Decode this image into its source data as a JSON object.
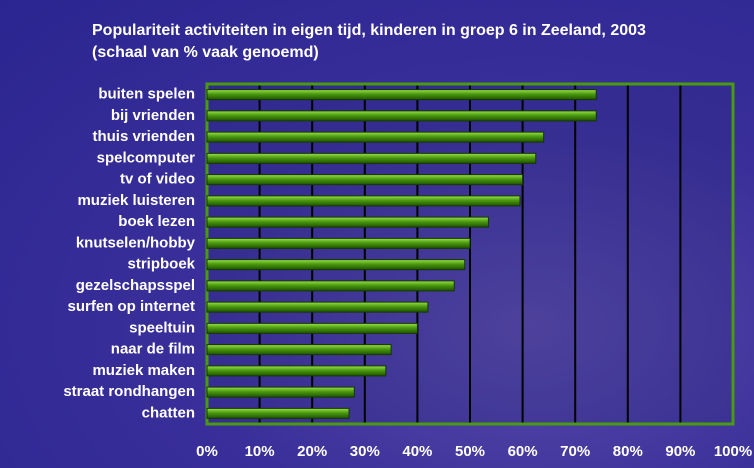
{
  "chart_data": {
    "type": "barh",
    "title": "Populariteit activiteiten in eigen tijd, kinderen in groep 6 in Zeeland, 2003 (schaal van % vaak genoemd)",
    "categories": [
      "buiten spelen",
      "bij vrienden",
      "thuis vrienden",
      "spelcomputer",
      "tv of video",
      "muziek luisteren",
      "boek lezen",
      "knutselen/hobby",
      "stripboek",
      "gezelschapsspel",
      "surfen op internet",
      "speeltuin",
      "naar de film",
      "muziek maken",
      "straat rondhangen",
      "chatten"
    ],
    "values": [
      74,
      74,
      64,
      62.5,
      60,
      59.5,
      53.5,
      50,
      49,
      47,
      42,
      40,
      35,
      34,
      28,
      27
    ],
    "color": "#3f8f00",
    "xlim": [
      0,
      100
    ],
    "xticks": [
      {
        "value": 0,
        "label": "0%"
      },
      {
        "value": 10,
        "label": "10%"
      },
      {
        "value": 20,
        "label": "20%"
      },
      {
        "value": 30,
        "label": "30%"
      },
      {
        "value": 40,
        "label": "40%"
      },
      {
        "value": 50,
        "label": "50%"
      },
      {
        "value": 60,
        "label": "60%"
      },
      {
        "value": 70,
        "label": "70%"
      },
      {
        "value": 80,
        "label": "80%"
      },
      {
        "value": 90,
        "label": "90%"
      },
      {
        "value": 100,
        "label": "100%"
      }
    ],
    "grid": true
  }
}
